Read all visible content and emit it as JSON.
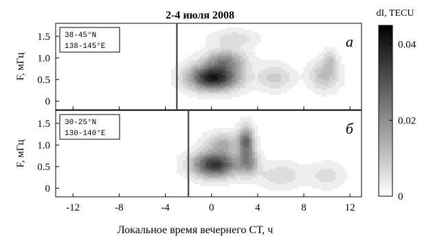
{
  "chart_data": {
    "type": "heatmap",
    "title": "2-4 июля 2008",
    "xlabel": "Локальное время вечернего СТ, ч",
    "ylabel": "F, мГц",
    "x_range": [
      -13.5,
      13
    ],
    "x_ticks": [
      "-12",
      "-8",
      "-4",
      "0",
      "4",
      "8",
      "12"
    ],
    "y_range": [
      -0.2,
      1.8
    ],
    "y_ticks": [
      "0",
      "0.5",
      "1.0",
      "1.5"
    ],
    "colorbar": {
      "label": "dI, TECU",
      "range": [
        0,
        0.045
      ],
      "ticks": [
        "0",
        "0.02",
        "0.04"
      ],
      "colormap": "white-to-black"
    },
    "panels": [
      {
        "letter": "a",
        "region": [
          "38-45°N",
          "138-145°E"
        ],
        "marker_x": -3,
        "blobs": [
          {
            "x": 0.2,
            "y": 0.55,
            "sx": 2.2,
            "sy": 0.3,
            "v": 0.041
          },
          {
            "x": 1.2,
            "y": 0.95,
            "sx": 1.8,
            "sy": 0.25,
            "v": 0.018
          },
          {
            "x": 2.0,
            "y": 1.45,
            "sx": 2.0,
            "sy": 0.2,
            "v": 0.007
          },
          {
            "x": 5.5,
            "y": 0.55,
            "sx": 1.5,
            "sy": 0.3,
            "v": 0.009
          },
          {
            "x": 9.8,
            "y": 0.6,
            "sx": 1.3,
            "sy": 0.35,
            "v": 0.012
          },
          {
            "x": 10.3,
            "y": 0.95,
            "sx": 0.6,
            "sy": 0.25,
            "v": 0.008
          }
        ]
      },
      {
        "letter": "б",
        "region": [
          "30-25°N",
          "130-140°E"
        ],
        "marker_x": -2,
        "blobs": [
          {
            "x": 0.3,
            "y": 0.55,
            "sx": 2.0,
            "sy": 0.3,
            "v": 0.036
          },
          {
            "x": 3.0,
            "y": 1.1,
            "sx": 0.7,
            "sy": 0.35,
            "v": 0.025
          },
          {
            "x": 3.2,
            "y": 0.6,
            "sx": 0.9,
            "sy": 0.3,
            "v": 0.018
          },
          {
            "x": 1.0,
            "y": 1.05,
            "sx": 1.5,
            "sy": 0.25,
            "v": 0.013
          },
          {
            "x": 6.0,
            "y": 0.3,
            "sx": 2.0,
            "sy": 0.3,
            "v": 0.007
          },
          {
            "x": 10.0,
            "y": 0.3,
            "sx": 1.5,
            "sy": 0.3,
            "v": 0.006
          }
        ]
      }
    ]
  }
}
